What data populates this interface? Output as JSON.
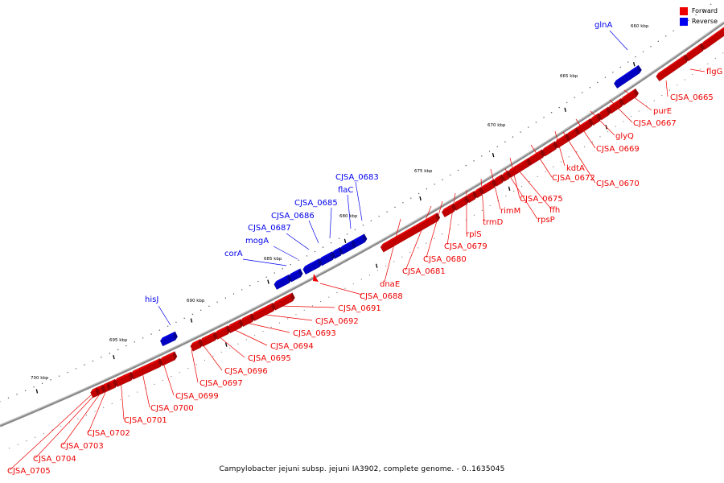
{
  "caption": "Campylobacter jejuni subsp. jejuni IA3902, complete genome. - 0..1635045",
  "legend": [
    {
      "label": "Forward",
      "color": "#ee0000"
    },
    {
      "label": "Reverse",
      "color": "#0000ee"
    }
  ],
  "colors": {
    "forward": "#ee0000",
    "reverse": "#0000ee",
    "backbone": "#808080"
  },
  "ruler": [
    "660 kbp",
    "665 kbp",
    "670 kbp",
    "675 kbp",
    "680 kbp",
    "685 kbp",
    "690 kbp",
    "695 kbp",
    "700 kbp"
  ],
  "features": [
    {
      "name": "glnA",
      "strand": "reverse"
    },
    {
      "name": "flgG",
      "strand": "forward"
    },
    {
      "name": "CJSA_0665",
      "strand": "forward"
    },
    {
      "name": "purE",
      "strand": "forward"
    },
    {
      "name": "CJSA_0667",
      "strand": "forward"
    },
    {
      "name": "glyQ",
      "strand": "forward"
    },
    {
      "name": "CJSA_0669",
      "strand": "forward"
    },
    {
      "name": "kdtA",
      "strand": "forward"
    },
    {
      "name": "CJSA_0670",
      "strand": "forward"
    },
    {
      "name": "CJSA_0672",
      "strand": "forward"
    },
    {
      "name": "CJSA_0675",
      "strand": "forward"
    },
    {
      "name": "ffh",
      "strand": "forward"
    },
    {
      "name": "rpsP",
      "strand": "forward"
    },
    {
      "name": "rimM",
      "strand": "forward"
    },
    {
      "name": "trmD",
      "strand": "forward"
    },
    {
      "name": "rplS",
      "strand": "forward"
    },
    {
      "name": "CJSA_0679",
      "strand": "forward"
    },
    {
      "name": "CJSA_0680",
      "strand": "forward"
    },
    {
      "name": "CJSA_0681",
      "strand": "forward"
    },
    {
      "name": "dnaE",
      "strand": "forward"
    },
    {
      "name": "CJSA_0688",
      "strand": "forward"
    },
    {
      "name": "CJSA_0683",
      "strand": "reverse"
    },
    {
      "name": "flaC",
      "strand": "reverse"
    },
    {
      "name": "CJSA_0685",
      "strand": "reverse"
    },
    {
      "name": "CJSA_0686",
      "strand": "reverse"
    },
    {
      "name": "CJSA_0687",
      "strand": "reverse"
    },
    {
      "name": "mogA",
      "strand": "reverse"
    },
    {
      "name": "corA",
      "strand": "reverse"
    },
    {
      "name": "hisJ",
      "strand": "reverse"
    },
    {
      "name": "CJSA_0691",
      "strand": "forward"
    },
    {
      "name": "CJSA_0692",
      "strand": "forward"
    },
    {
      "name": "CJSA_0693",
      "strand": "forward"
    },
    {
      "name": "CJSA_0694",
      "strand": "forward"
    },
    {
      "name": "CJSA_0695",
      "strand": "forward"
    },
    {
      "name": "CJSA_0696",
      "strand": "forward"
    },
    {
      "name": "CJSA_0697",
      "strand": "forward"
    },
    {
      "name": "CJSA_0699",
      "strand": "forward"
    },
    {
      "name": "CJSA_0700",
      "strand": "forward"
    },
    {
      "name": "CJSA_0701",
      "strand": "forward"
    },
    {
      "name": "CJSA_0702",
      "strand": "forward"
    },
    {
      "name": "CJSA_0703",
      "strand": "forward"
    },
    {
      "name": "CJSA_0704",
      "strand": "forward"
    },
    {
      "name": "CJSA_0705",
      "strand": "forward"
    }
  ]
}
